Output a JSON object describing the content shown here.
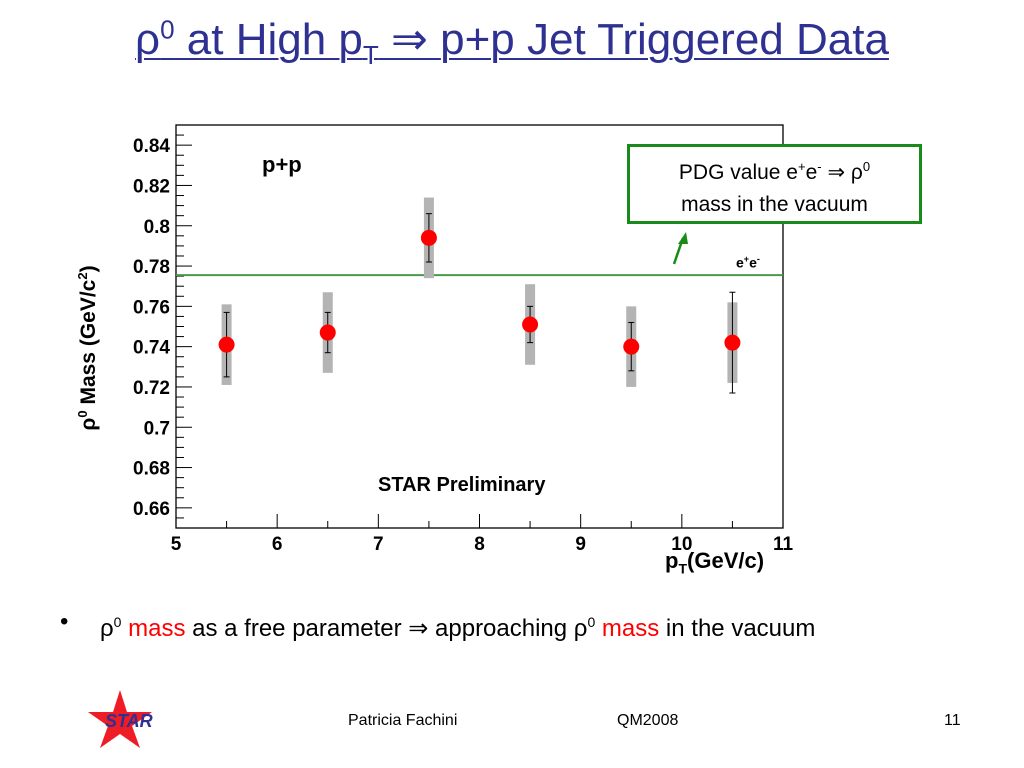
{
  "slide": {
    "title_prefix": "ρ",
    "title_sup": "0",
    "title_mid": " at High p",
    "title_sub": "T",
    "title_arrow": " ⇒ ",
    "title_suffix": "p+p Jet Triggered Data",
    "bullet": {
      "marker": "•",
      "rho1": "ρ",
      "sup1": "0",
      "mass1": "mass",
      "text_mid": " as a free parameter ⇒ approaching ρ",
      "sup2": "0",
      "mass2": "mass",
      "text_end": " in the vacuum"
    },
    "footer": {
      "logo_text": "STAR",
      "author": "Patricia Fachini",
      "conference": "QM2008",
      "page": "11"
    },
    "colors": {
      "title": "#2e3192",
      "emphasis": "#ff0000",
      "pdg_line": "#4a9a4a",
      "box": "#1a8a1a"
    }
  },
  "chart_data": {
    "type": "scatter",
    "ylabel_main": "ρ",
    "ylabel_sup0": "0",
    "ylabel_rest": " Mass (GeV/c",
    "ylabel_sup2": "2",
    "ylabel_close": ")",
    "xlabel_main": "p",
    "xlabel_sub": "T",
    "xlabel_rest": "(GeV/c)",
    "xlim": [
      5,
      11
    ],
    "ylim": [
      0.65,
      0.85
    ],
    "xticks": [
      5,
      6,
      7,
      8,
      9,
      10,
      11
    ],
    "yticks": [
      0.66,
      0.68,
      0.7,
      0.72,
      0.74,
      0.76,
      0.78,
      0.8,
      0.82,
      0.84
    ],
    "ytick_labels": [
      "0.66",
      "0.68",
      "0.7",
      "0.72",
      "0.74",
      "0.76",
      "0.78",
      "0.8",
      "0.82",
      "0.84"
    ],
    "points": [
      {
        "x": 5.5,
        "y": 0.741,
        "stat": 0.016,
        "sys": 0.02
      },
      {
        "x": 6.5,
        "y": 0.747,
        "stat": 0.01,
        "sys": 0.02
      },
      {
        "x": 7.5,
        "y": 0.794,
        "stat": 0.012,
        "sys": 0.02
      },
      {
        "x": 8.5,
        "y": 0.751,
        "stat": 0.009,
        "sys": 0.02
      },
      {
        "x": 9.5,
        "y": 0.74,
        "stat": 0.012,
        "sys": 0.02
      },
      {
        "x": 10.5,
        "y": 0.742,
        "stat": 0.025,
        "sys": 0.02
      }
    ],
    "reference_line": {
      "y": 0.7755,
      "label_main": "e",
      "label_sup1": "+",
      "label_mid": "e",
      "label_sup2": "-"
    },
    "annotations": {
      "system": "p+p",
      "preliminary": "STAR Preliminary",
      "pdg_line1_a": "PDG value e",
      "pdg_line1_sup1": "+",
      "pdg_line1_b": "e",
      "pdg_line1_sup2": "-",
      "pdg_line1_c": " ⇒ ρ",
      "pdg_line1_sup3": "0",
      "pdg_line2": "mass in the vacuum"
    }
  }
}
